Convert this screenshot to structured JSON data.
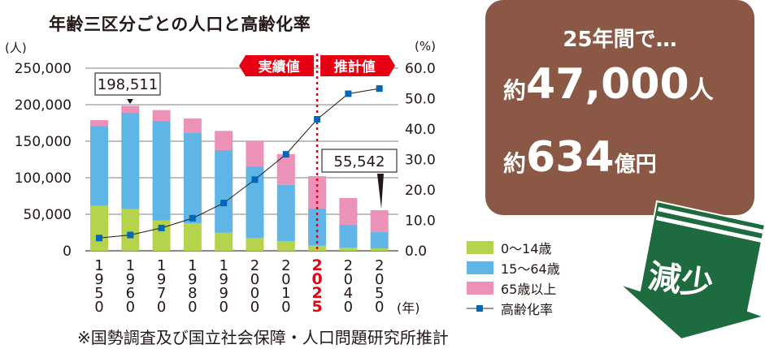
{
  "chart_data": {
    "type": "bar",
    "title": "年齢三区分ごとの人口と高齢化率",
    "ylabel": "(人)",
    "y2label": "(%)",
    "xlabel": "(年)",
    "categories": [
      "1950",
      "1960",
      "1970",
      "1980",
      "1990",
      "2000",
      "2010",
      "2025",
      "2040",
      "2050"
    ],
    "highlight_category": "2025",
    "ylim": [
      0,
      250000
    ],
    "y2lim": [
      0,
      60
    ],
    "yticks": [
      "0",
      "50,000",
      "100,000",
      "150,000",
      "200,000",
      "250,000"
    ],
    "y2ticks": [
      "0.0",
      "10.0",
      "20.0",
      "30.0",
      "40.0",
      "50.0",
      "60.0"
    ],
    "series": [
      {
        "name": "0〜14歳",
        "type": "stacked-bar",
        "color": "#b5d34d",
        "values": [
          61400,
          57000,
          41400,
          37800,
          24800,
          17400,
          13000,
          7000,
          4100,
          3300
        ]
      },
      {
        "name": "15〜64歳",
        "type": "stacked-bar",
        "color": "#5eb5e6",
        "values": [
          109600,
          131900,
          136400,
          124100,
          113000,
          98200,
          77300,
          50800,
          31500,
          22600
        ]
      },
      {
        "name": "65歳以上",
        "type": "stacked-bar",
        "color": "#ec92b8",
        "values": [
          7900,
          9600,
          14800,
          19200,
          26300,
          34400,
          41900,
          44400,
          36600,
          29600
        ]
      },
      {
        "name": "高齢化率",
        "type": "line",
        "axis": "right",
        "color": "#0068b7",
        "values": [
          4.2,
          5.2,
          7.5,
          10.7,
          15.7,
          23.4,
          31.7,
          43.2,
          51.6,
          53.3
        ]
      }
    ],
    "annotations": [
      {
        "category": "1960",
        "text": "198,511"
      },
      {
        "category": "2050",
        "text": "55,542"
      }
    ],
    "period_labels": {
      "actual": "実績値",
      "estimate": "推計値"
    }
  },
  "summary": {
    "line1": "25年間で…",
    "prefix": "約",
    "people": "47,000",
    "people_unit": "人",
    "money": "634",
    "money_unit": "億円",
    "arrow_label": "減少"
  },
  "footer": "※国勢調査及び国立社会保障・人口問題研究所推計",
  "colors": {
    "box": "#8b5846",
    "arrow": "#1e6b3f",
    "red": "#e60012"
  }
}
